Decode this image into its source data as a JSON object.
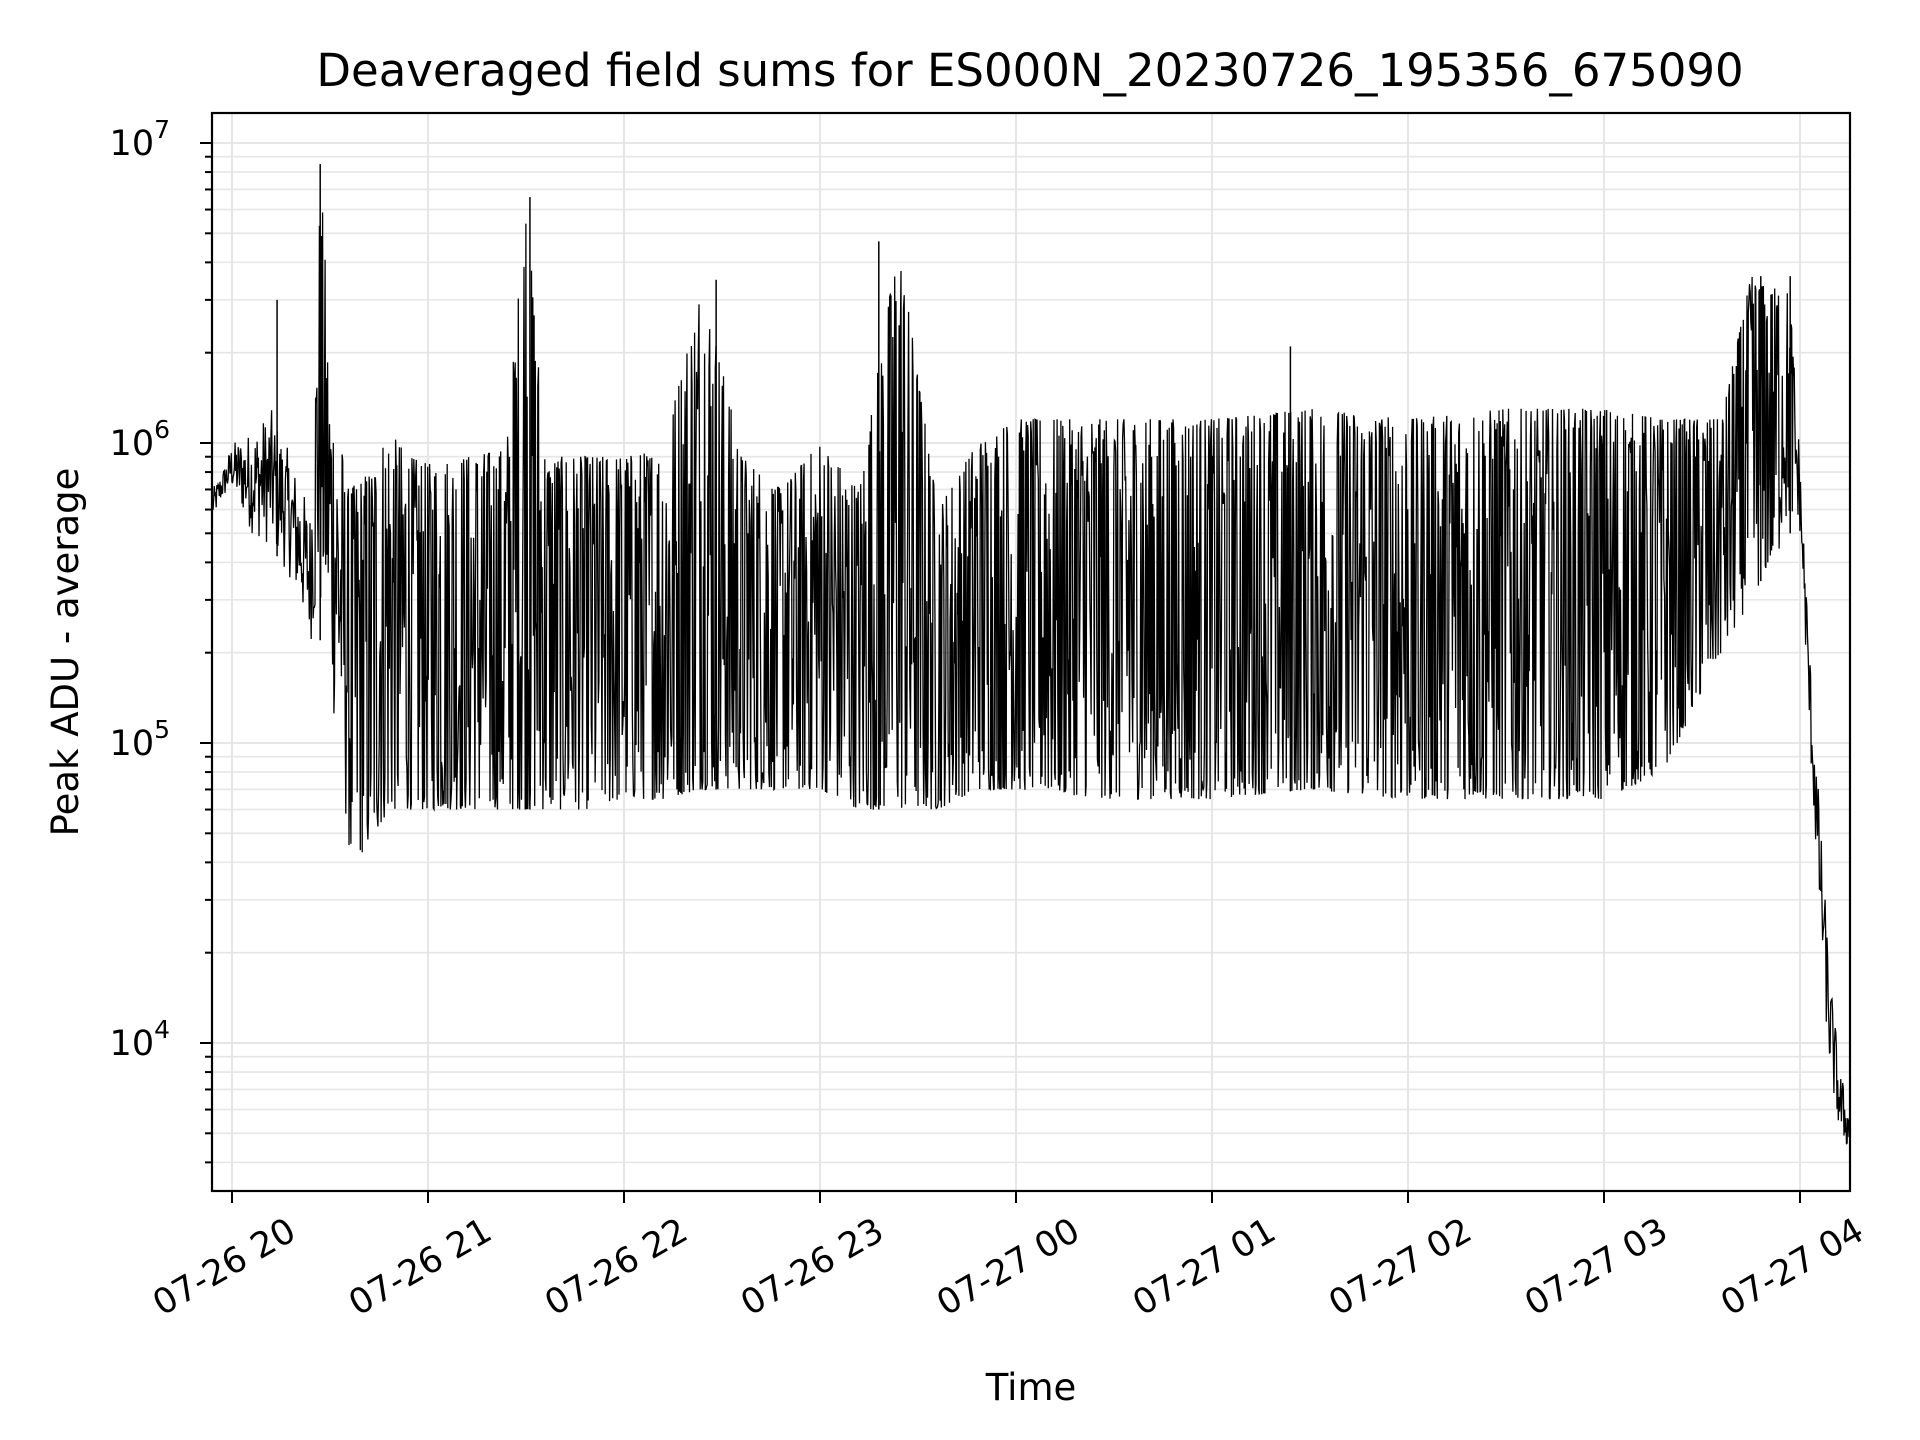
{
  "chart_data": {
    "type": "line",
    "title": "Deaveraged field sums for ES000N_20230726_195356_675090",
    "xlabel": "Time",
    "ylabel": "Peak ADU - average",
    "yscale": "log",
    "ylim": [
      3300,
      12000000
    ],
    "xlim": [
      "07-26 19:53",
      "07-27 04:16"
    ],
    "grid": true,
    "line_color": "#000000",
    "y_ticks": [
      {
        "base": "10",
        "exp": "4",
        "value": 10000
      },
      {
        "base": "10",
        "exp": "5",
        "value": 100000
      },
      {
        "base": "10",
        "exp": "6",
        "value": 1000000
      },
      {
        "base": "10",
        "exp": "7",
        "value": 10000000
      }
    ],
    "x_ticks": [
      {
        "label": "07-26 20",
        "hour": 20
      },
      {
        "label": "07-26 21",
        "hour": 21
      },
      {
        "label": "07-26 22",
        "hour": 22
      },
      {
        "label": "07-26 23",
        "hour": 23
      },
      {
        "label": "07-27 00",
        "hour": 24
      },
      {
        "label": "07-27 01",
        "hour": 25
      },
      {
        "label": "07-27 02",
        "hour": 26
      },
      {
        "label": "07-27 03",
        "hour": 27
      },
      {
        "label": "07-27 04",
        "hour": 28
      }
    ],
    "series": [
      {
        "x_hours": [
          19.9,
          19.95,
          20.0,
          20.1,
          20.2,
          20.25,
          20.3,
          20.4,
          20.45,
          20.5,
          20.6,
          20.7,
          20.8,
          20.9,
          21.0,
          21.2,
          21.4,
          21.5,
          21.6,
          21.8,
          22.0,
          22.2,
          22.4,
          22.6,
          22.8,
          23.0,
          23.2,
          23.4,
          23.6,
          23.8,
          24.0,
          24.5,
          25.0,
          25.5,
          26.0,
          26.5,
          27.0,
          27.3,
          27.6,
          27.75,
          27.85,
          27.95,
          28.0,
          28.05,
          28.1,
          28.15,
          28.2,
          28.25
        ],
        "envelope_max": [
          700000,
          800000,
          1000000,
          1100000,
          1300000,
          1100000,
          900000,
          600000,
          8500000,
          2300000,
          700000,
          800000,
          1100000,
          900000,
          850000,
          900000,
          950000,
          6600000,
          900000,
          900000,
          900000,
          950000,
          3500000,
          900000,
          700000,
          1000000,
          700000,
          4700000,
          600000,
          1000000,
          1200000,
          1200000,
          1200000,
          1300000,
          1200000,
          1300000,
          1300000,
          1200000,
          1200000,
          3600000,
          3200000,
          3600000,
          900000,
          200000,
          60000,
          18000,
          8500,
          6000
        ],
        "envelope_min": [
          550000,
          650000,
          700000,
          500000,
          450000,
          400000,
          350000,
          220000,
          220000,
          150000,
          40000,
          45000,
          60000,
          60000,
          60000,
          60000,
          60000,
          60000,
          60000,
          60000,
          65000,
          65000,
          70000,
          70000,
          70000,
          70000,
          60000,
          60000,
          60000,
          70000,
          70000,
          65000,
          65000,
          70000,
          65000,
          65000,
          65000,
          80000,
          200000,
          300000,
          400000,
          500000,
          500000,
          100000,
          25000,
          8000,
          5000,
          4300
        ],
        "spikes": [
          {
            "hour": 20.23,
            "value": 3000000
          },
          {
            "hour": 20.45,
            "value": 8500000
          },
          {
            "hour": 21.52,
            "value": 6600000
          },
          {
            "hour": 22.47,
            "value": 3500000
          },
          {
            "hour": 23.3,
            "value": 4700000
          },
          {
            "hour": 25.4,
            "value": 2100000
          },
          {
            "hour": 27.8,
            "value": 3600000
          },
          {
            "hour": 27.95,
            "value": 3600000
          }
        ]
      }
    ]
  }
}
